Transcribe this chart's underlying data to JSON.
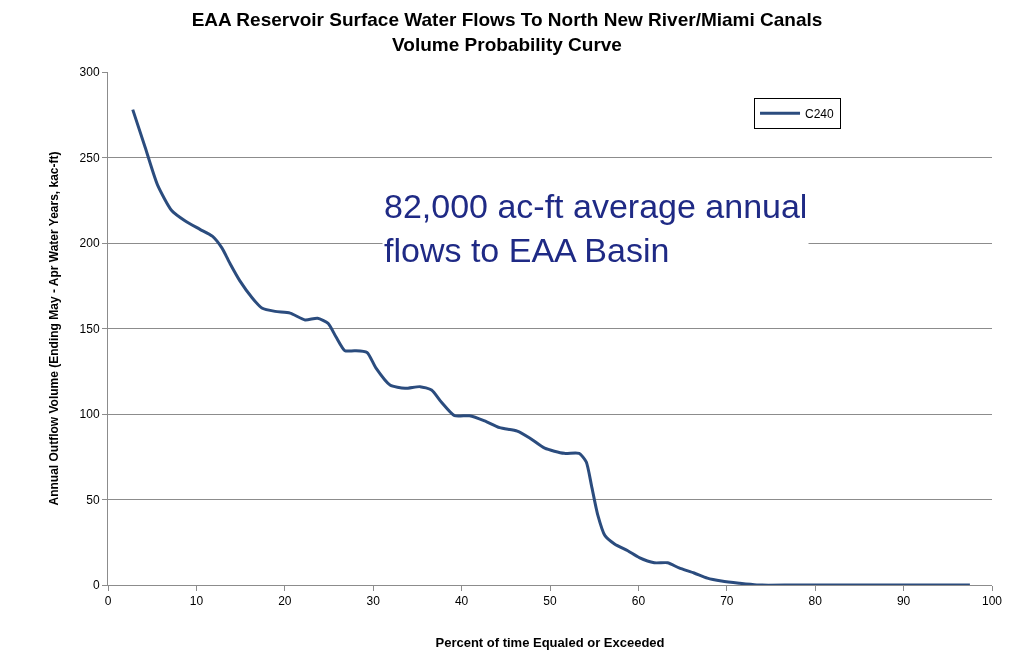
{
  "chart_data": {
    "type": "line",
    "title": "EAA Reservoir Surface Water Flows To North New River/Miami Canals\nVolume Probability Curve",
    "xlabel": "Percent of time Equaled or Exceeded",
    "ylabel": "Annual Outflow Volume (Ending May - Apr Water Years, kac-ft)",
    "annotations": [
      "82,000 ac-ft average annual\nflows to EAA Basin"
    ],
    "x": [
      2.8,
      4.2,
      5.6,
      7.2,
      8.7,
      10.4,
      11.8,
      12.9,
      13.8,
      14.9,
      16.3,
      17.4,
      18.9,
      20.6,
      22.3,
      23.7,
      24.9,
      25.8,
      26.8,
      27.9,
      29.3,
      30.3,
      31.9,
      33.6,
      35.3,
      36.6,
      37.7,
      39.2,
      40.9,
      42.6,
      44.3,
      46.3,
      47.7,
      49.4,
      51.6,
      53.3,
      54.1,
      54.7,
      55.4,
      56.2,
      57.3,
      58.8,
      60.1,
      61.8,
      63.3,
      64.6,
      66.3,
      67.8,
      69.4,
      71.4,
      73.4,
      78,
      97.5
    ],
    "series": [
      {
        "name": "C240",
        "color": "#2b4c7e",
        "values": [
          278,
          256,
          234,
          219,
          213,
          208,
          204,
          197,
          188,
          178,
          168,
          162,
          160,
          159,
          155,
          156,
          153,
          145,
          137,
          137,
          136,
          127,
          117,
          115,
          116,
          114,
          107,
          99,
          99,
          96,
          92,
          90,
          86,
          80,
          77,
          77,
          72,
          58,
          41,
          29,
          24,
          20,
          16,
          13,
          13,
          10,
          7,
          4,
          2.3,
          1,
          0,
          0,
          0
        ]
      }
    ],
    "xlim": [
      0,
      100
    ],
    "xticks": [
      0,
      10,
      20,
      30,
      40,
      50,
      60,
      70,
      80,
      90,
      100
    ],
    "ylim": [
      0,
      300
    ],
    "yticks": [
      0,
      50,
      100,
      150,
      200,
      250,
      300
    ],
    "grid": "y",
    "legend": "top right",
    "marker": "none",
    "line_style": "solid"
  }
}
